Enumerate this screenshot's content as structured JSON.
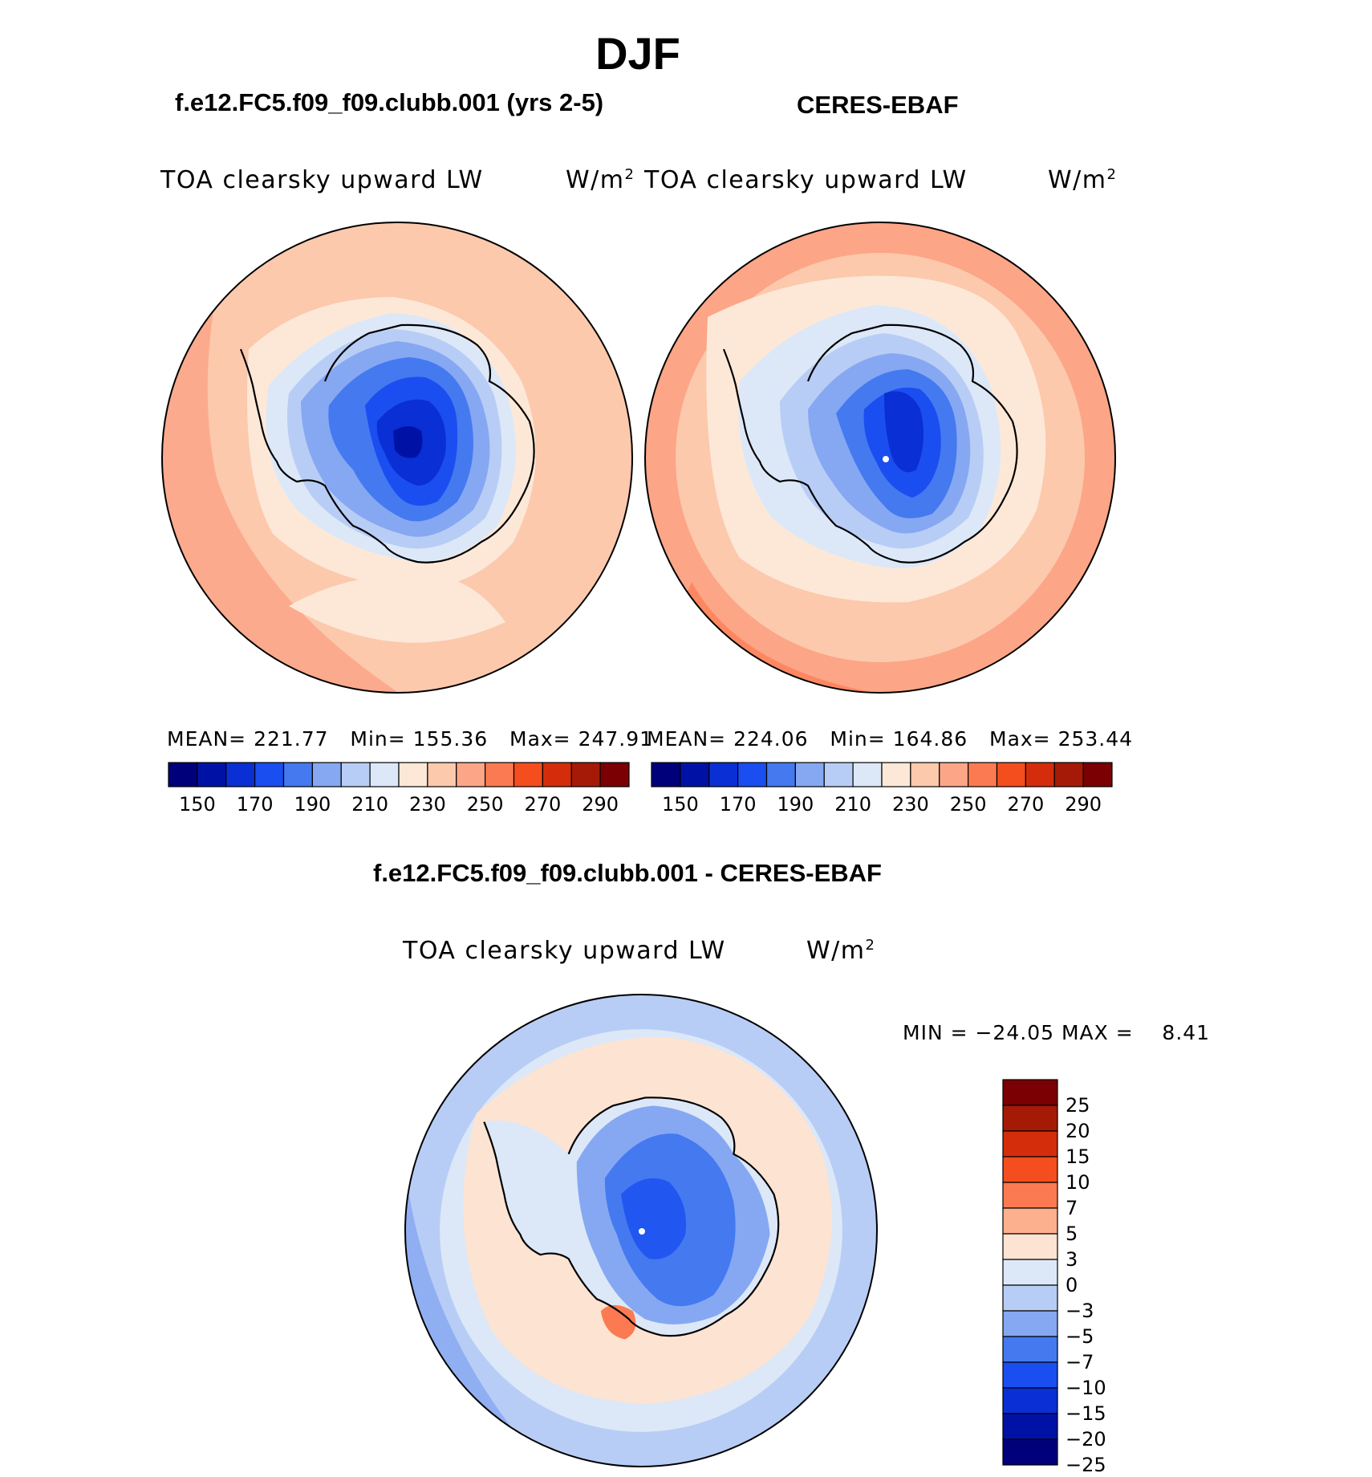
{
  "figure": {
    "season": "DJF"
  },
  "panels": {
    "model": {
      "case_title": "f.e12.FC5.f09_f09.clubb.001 (yrs 2-5)",
      "field": "TOA clearsky upward LW",
      "units": "W/m",
      "units_exp": "2",
      "mean_label": "MEAN=",
      "mean": "221.77",
      "min_label": "Min=",
      "min": "155.36",
      "max_label": "Max=",
      "max": "247.91"
    },
    "obs": {
      "case_title": "CERES-EBAF",
      "field": "TOA clearsky upward LW",
      "units": "W/m",
      "units_exp": "2",
      "mean_label": "MEAN=",
      "mean": "224.06",
      "min_label": "Min=",
      "min": "164.86",
      "max_label": "Max=",
      "max": "253.44"
    },
    "diff": {
      "case_title": "f.e12.FC5.f09_f09.clubb.001 - CERES-EBAF",
      "field": "TOA clearsky upward LW",
      "units": "W/m",
      "units_exp": "2",
      "minmax_label": "MIN = −24.05 MAX =    8.41"
    }
  },
  "colorbars": {
    "absolute": {
      "levels": [
        150,
        160,
        170,
        180,
        190,
        200,
        210,
        220,
        230,
        240,
        250,
        260,
        270,
        280,
        290
      ],
      "tick_labels": [
        "150",
        "170",
        "190",
        "210",
        "230",
        "250",
        "270",
        "290"
      ],
      "colors": [
        "#00007a",
        "#0012a6",
        "#0a2fd4",
        "#1a4ef0",
        "#4479f0",
        "#86a8f2",
        "#b8cdf5",
        "#dce8f8",
        "#fde8d8",
        "#fcc9ad",
        "#fca587",
        "#fc7a51",
        "#f44d1e",
        "#d42d0c",
        "#a51a06",
        "#7a0003"
      ]
    },
    "difference": {
      "levels": [
        -25,
        -20,
        -15,
        -10,
        -7,
        -5,
        -3,
        0,
        3,
        5,
        7,
        10,
        15,
        20,
        25
      ],
      "tick_labels": [
        "25",
        "20",
        "15",
        "10",
        "7",
        "5",
        "3",
        "0",
        "−3",
        "−5",
        "−7",
        "−10",
        "−15",
        "−20",
        "−25"
      ],
      "colors": [
        "#7a0003",
        "#a51a06",
        "#d42d0c",
        "#f44d1e",
        "#fc7a51",
        "#fcb08e",
        "#fde3d2",
        "#dce8f8",
        "#b8cdf5",
        "#86a8f2",
        "#4479f0",
        "#1a4ef0",
        "#0a2fd4",
        "#0012a6",
        "#00007a"
      ]
    }
  }
}
